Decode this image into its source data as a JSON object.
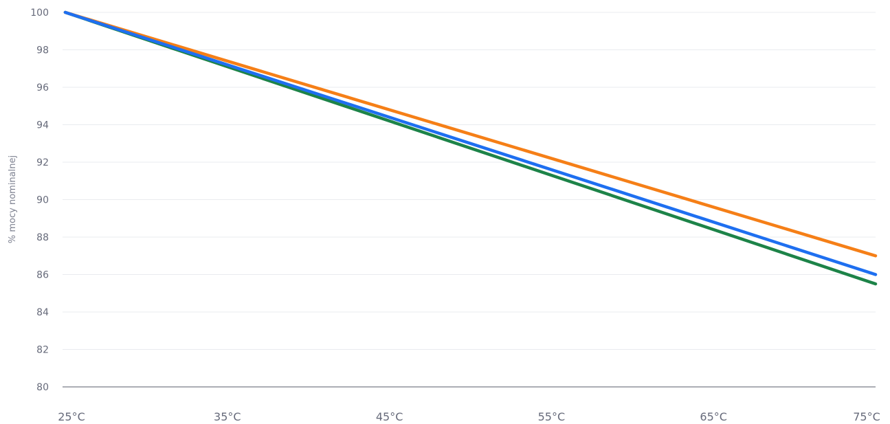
{
  "chart_data": {
    "type": "line",
    "title": "",
    "xlabel": "",
    "ylabel": "% mocy nominalnej",
    "x": [
      25,
      75
    ],
    "x_ticks": [
      25,
      35,
      45,
      55,
      65,
      75
    ],
    "x_tick_labels": [
      "25°C",
      "35°C",
      "45°C",
      "55°C",
      "65°C",
      "75°C"
    ],
    "xlim": [
      25,
      75
    ],
    "ylim": [
      80,
      100
    ],
    "y_ticks": [
      80,
      82,
      84,
      86,
      88,
      90,
      92,
      94,
      96,
      98,
      100
    ],
    "y_tick_labels": [
      "80",
      "82",
      "84",
      "86",
      "88",
      "90",
      "92",
      "94",
      "96",
      "98",
      "100"
    ],
    "grid": true,
    "legend": "none",
    "series": [
      {
        "color": "#1d8348",
        "values": [
          100,
          85.5
        ]
      },
      {
        "color": "#f57f17",
        "values": [
          100,
          87.0
        ]
      },
      {
        "color": "#1e6ff0",
        "values": [
          100,
          86.0
        ]
      }
    ]
  },
  "colors": {
    "gridline": "#e9ebef",
    "baseline": "#8f929b"
  }
}
